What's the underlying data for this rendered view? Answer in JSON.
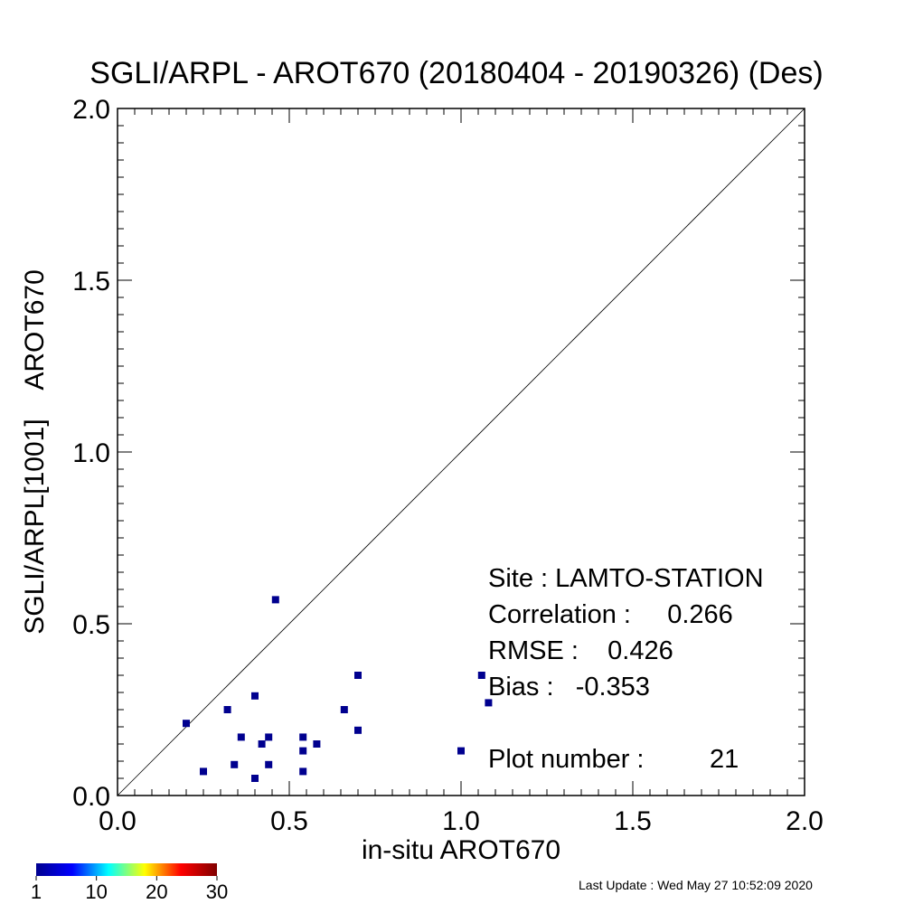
{
  "chart_data": {
    "type": "scatter",
    "title": "SGLI/ARPL - AROT670 (20180404 - 20190326) (Des)",
    "xlabel": "in-situ AROT670",
    "ylabel": "SGLI/ARPL[1001]    AROT670",
    "xlim": [
      0.0,
      2.0
    ],
    "ylim": [
      0.0,
      2.0
    ],
    "x_ticks": [
      "0.0",
      "0.5",
      "1.0",
      "1.5",
      "2.0"
    ],
    "y_ticks": [
      "0.0",
      "0.5",
      "1.0",
      "1.5",
      "2.0"
    ],
    "one_to_one_line": true,
    "grid": false,
    "marker_color": "#00008f",
    "points": [
      {
        "x": 0.2,
        "y": 0.21
      },
      {
        "x": 0.25,
        "y": 0.07
      },
      {
        "x": 0.32,
        "y": 0.25
      },
      {
        "x": 0.34,
        "y": 0.09
      },
      {
        "x": 0.36,
        "y": 0.17
      },
      {
        "x": 0.4,
        "y": 0.29
      },
      {
        "x": 0.4,
        "y": 0.05
      },
      {
        "x": 0.42,
        "y": 0.15
      },
      {
        "x": 0.44,
        "y": 0.17
      },
      {
        "x": 0.44,
        "y": 0.09
      },
      {
        "x": 0.46,
        "y": 0.57
      },
      {
        "x": 0.54,
        "y": 0.17
      },
      {
        "x": 0.54,
        "y": 0.13
      },
      {
        "x": 0.54,
        "y": 0.07
      },
      {
        "x": 0.58,
        "y": 0.15
      },
      {
        "x": 0.66,
        "y": 0.25
      },
      {
        "x": 0.7,
        "y": 0.35
      },
      {
        "x": 0.7,
        "y": 0.19
      },
      {
        "x": 1.0,
        "y": 0.13
      },
      {
        "x": 1.06,
        "y": 0.35
      },
      {
        "x": 1.08,
        "y": 0.27
      }
    ],
    "stats": {
      "site": "Site : LAMTO-STATION",
      "correlation": "Correlation :     0.266",
      "rmse": "RMSE :    0.426",
      "bias": "Bias :   -0.353",
      "plot_number": "Plot number :         21"
    },
    "colorbar": {
      "ticks": [
        "1",
        "10",
        "20",
        "30"
      ],
      "colors": [
        "#00008f",
        "#0000ff",
        "#00ffff",
        "#ffff00",
        "#ff0000",
        "#800000"
      ]
    }
  },
  "footer": {
    "last_update": "Last Update : Wed May 27 10:52:09 2020"
  }
}
